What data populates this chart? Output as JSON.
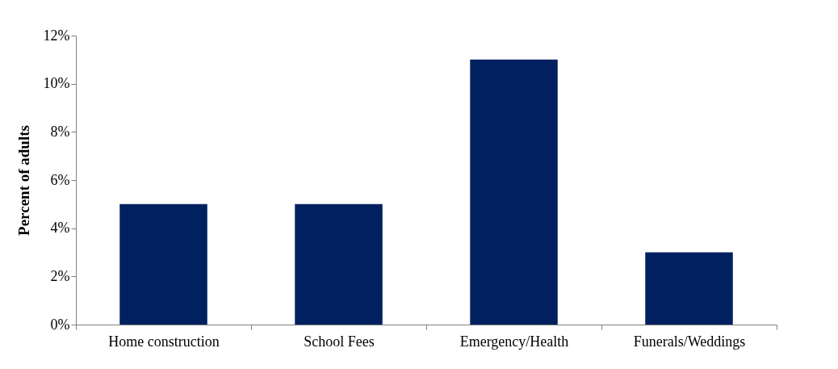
{
  "chart_data": {
    "type": "bar",
    "ylabel": "Percent of adults",
    "categories": [
      "Home construction",
      "School Fees",
      "Emergency/Health",
      "Funerals/Weddings"
    ],
    "values": [
      5,
      5,
      11,
      3
    ],
    "color": "#002060",
    "ylim": [
      0,
      12
    ],
    "yticks": [
      {
        "value": 0,
        "label": "0%"
      },
      {
        "value": 2,
        "label": "2%"
      },
      {
        "value": 4,
        "label": "4%"
      },
      {
        "value": 6,
        "label": "6%"
      },
      {
        "value": 8,
        "label": "8%"
      },
      {
        "value": 10,
        "label": "10%"
      },
      {
        "value": 12,
        "label": "12%"
      }
    ],
    "grid": false
  }
}
